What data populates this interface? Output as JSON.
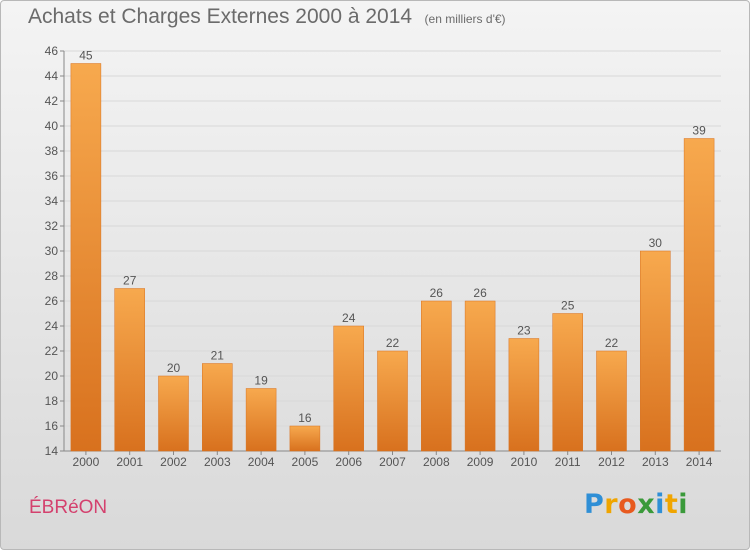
{
  "title": "Achats et Charges Externes 2000 à 2014",
  "unit_note": "(en milliers d'€)",
  "commune": "ÉBRéON",
  "brand": {
    "letters": [
      {
        "ch": "P",
        "color": "#2f8fd6"
      },
      {
        "ch": "r",
        "color": "#f0a500"
      },
      {
        "ch": "o",
        "color": "#e85a1f"
      },
      {
        "ch": "x",
        "color": "#3a9a3a"
      },
      {
        "ch": "i",
        "color": "#2f8fd6"
      },
      {
        "ch": "t",
        "color": "#f0a500"
      },
      {
        "ch": "i",
        "color": "#3a9a3a"
      }
    ]
  },
  "colors": {
    "bar_light": "#f7a94e",
    "bar_dark": "#d8711e",
    "text": "#555555",
    "grid": "#d8d8d8",
    "commune": "#d4416e"
  },
  "chart_data": {
    "type": "bar",
    "title": "Achats et Charges Externes 2000 à 2014",
    "categories": [
      "2000",
      "2001",
      "2002",
      "2003",
      "2004",
      "2005",
      "2006",
      "2007",
      "2008",
      "2009",
      "2010",
      "2011",
      "2012",
      "2013",
      "2014"
    ],
    "values": [
      45,
      27,
      20,
      21,
      19,
      16,
      24,
      22,
      26,
      26,
      23,
      25,
      22,
      30,
      39
    ],
    "ylim": [
      14,
      46
    ],
    "yticks": [
      14,
      16,
      18,
      20,
      22,
      24,
      26,
      28,
      30,
      32,
      34,
      36,
      38,
      40,
      42,
      44,
      46
    ],
    "grid": true,
    "data_labels": true
  }
}
